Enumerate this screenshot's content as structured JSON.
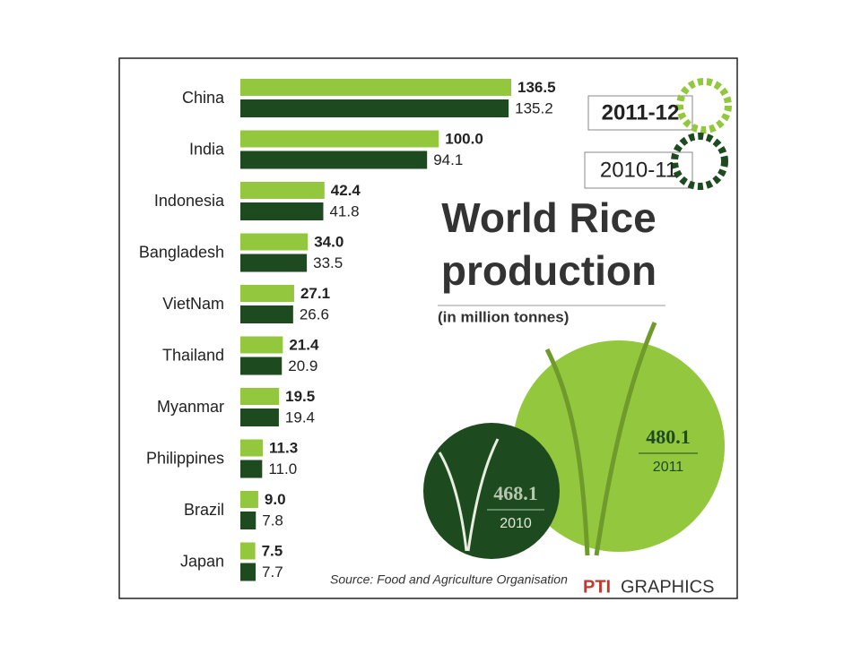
{
  "chart_data": {
    "type": "bar",
    "orientation": "horizontal",
    "title": [
      "World Rice",
      "production"
    ],
    "subtitle": "(in million tonnes)",
    "categories": [
      "China",
      "India",
      "Indonesia",
      "Bangladesh",
      "VietNam",
      "Thailand",
      "Myanmar",
      "Philippines",
      "Brazil",
      "Japan"
    ],
    "series": [
      {
        "name": "2011-12",
        "color": "#93c83e",
        "values": [
          136.5,
          100.0,
          42.4,
          34.0,
          27.1,
          21.4,
          19.5,
          11.3,
          9.0,
          7.5
        ],
        "value_labels": [
          "136.5",
          "100.0",
          "42.4",
          "34.0",
          "27.1",
          "21.4",
          "19.5",
          "11.3",
          "9.0",
          "7.5"
        ]
      },
      {
        "name": "2010-11",
        "color": "#1e4a1f",
        "values": [
          135.2,
          94.1,
          41.8,
          33.5,
          26.6,
          20.9,
          19.4,
          11.0,
          7.8,
          7.7
        ],
        "value_labels": [
          "135.2",
          "94.1",
          "41.8",
          "33.5",
          "26.6",
          "20.9",
          "19.4",
          "11.0",
          "7.8",
          "7.7"
        ]
      }
    ],
    "totals": [
      {
        "value": 480.1,
        "label": "2011"
      },
      {
        "value": 468.1,
        "label": "2010"
      }
    ],
    "source": "Source: Food and Agriculture Organisation",
    "logo": "PTI",
    "credit": "GRAPHICS"
  }
}
